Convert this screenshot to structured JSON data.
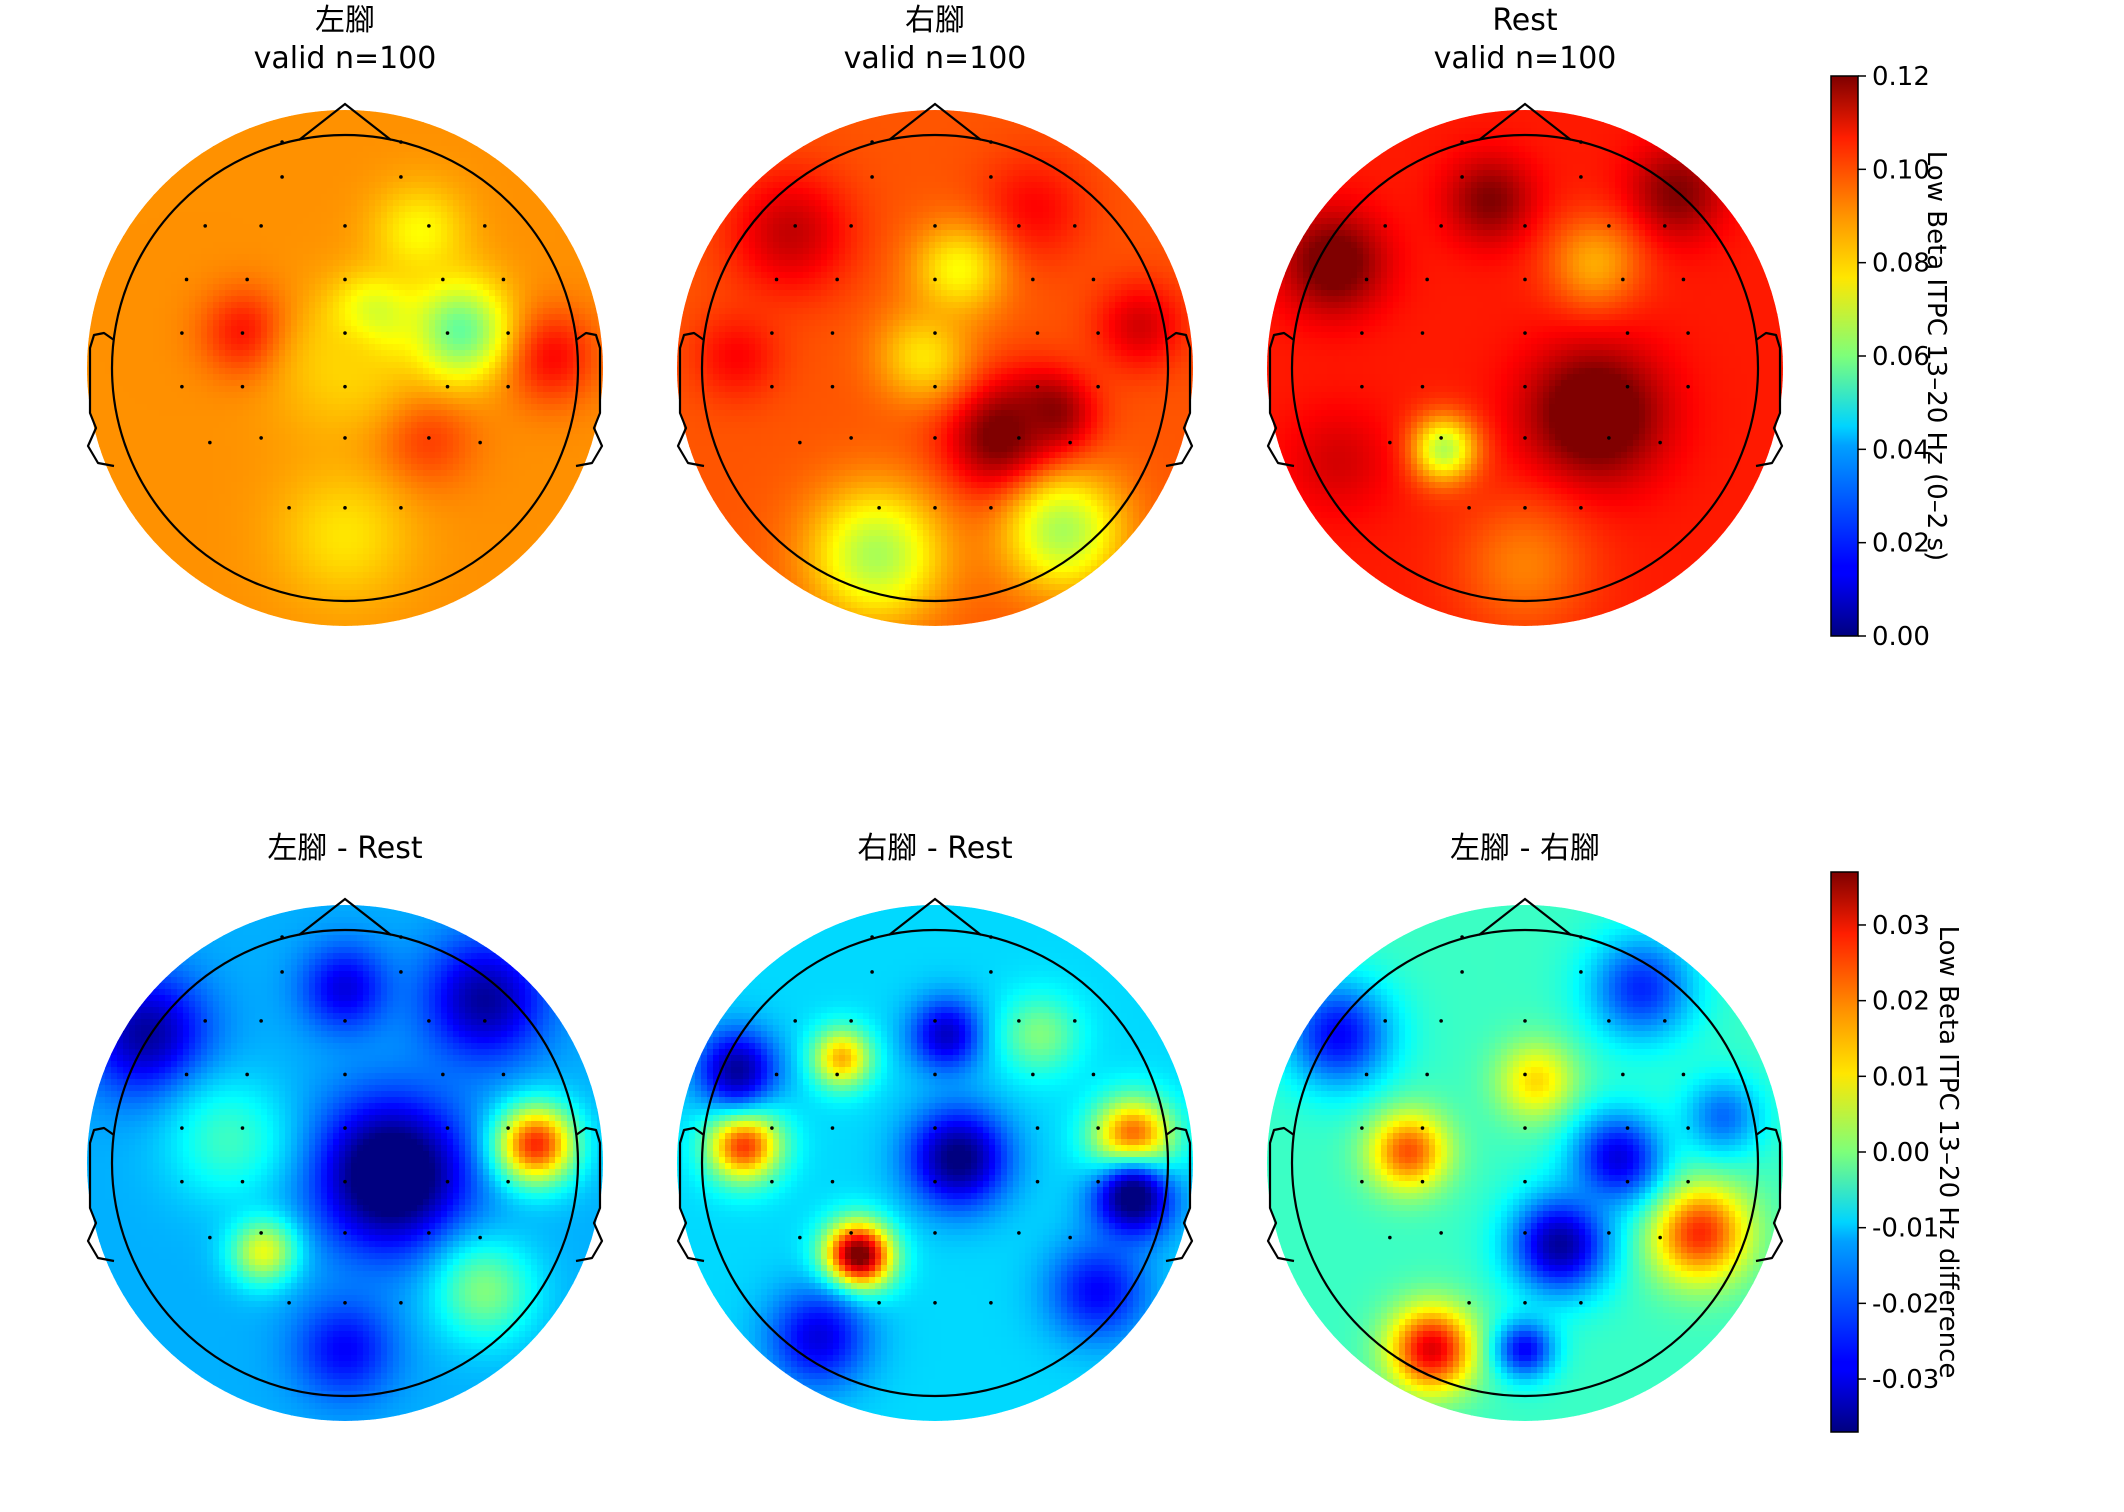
{
  "chart_data": [
    {
      "type": "heatmap",
      "subtype": "topomap",
      "title": "左腳",
      "subtitle": "valid n=100",
      "colormap": "jet",
      "scale_group": "itpc",
      "hotspots": [
        {
          "x": -0.42,
          "y": 0.15,
          "value": 0.105,
          "spread": 0.13
        },
        {
          "x": 0.88,
          "y": 0.05,
          "value": 0.105,
          "spread": 0.14
        },
        {
          "x": 0.33,
          "y": -0.3,
          "value": 0.1,
          "spread": 0.15
        },
        {
          "x": 0.48,
          "y": 0.16,
          "value": 0.055,
          "spread": 0.15
        },
        {
          "x": 0.12,
          "y": 0.2,
          "value": 0.06,
          "spread": 0.12
        },
        {
          "x": 0.32,
          "y": 0.58,
          "value": 0.075,
          "spread": 0.14
        },
        {
          "x": 0.0,
          "y": -0.72,
          "value": 0.078,
          "spread": 0.2
        },
        {
          "x": 0.0,
          "y": 0.0,
          "value": 0.08,
          "spread": 0.22
        }
      ],
      "background": 0.088
    },
    {
      "type": "heatmap",
      "subtype": "topomap",
      "title": "右腳",
      "subtitle": "valid n=100",
      "colormap": "jet",
      "scale_group": "itpc",
      "hotspots": [
        {
          "x": 0.3,
          "y": -0.3,
          "value": 0.125,
          "spread": 0.17
        },
        {
          "x": 0.5,
          "y": -0.2,
          "value": 0.12,
          "spread": 0.12
        },
        {
          "x": -0.62,
          "y": 0.58,
          "value": 0.112,
          "spread": 0.18
        },
        {
          "x": 0.42,
          "y": 0.68,
          "value": 0.105,
          "spread": 0.16
        },
        {
          "x": 0.88,
          "y": 0.18,
          "value": 0.11,
          "spread": 0.13
        },
        {
          "x": -0.85,
          "y": 0.05,
          "value": 0.105,
          "spread": 0.13
        },
        {
          "x": 0.1,
          "y": 0.42,
          "value": 0.075,
          "spread": 0.14
        },
        {
          "x": -0.25,
          "y": -0.8,
          "value": 0.065,
          "spread": 0.2
        },
        {
          "x": 0.55,
          "y": -0.7,
          "value": 0.065,
          "spread": 0.18
        },
        {
          "x": -0.05,
          "y": 0.05,
          "value": 0.078,
          "spread": 0.14
        }
      ],
      "background": 0.095
    },
    {
      "type": "heatmap",
      "subtype": "topomap",
      "title": "Rest",
      "subtitle": "valid n=100",
      "colormap": "jet",
      "scale_group": "itpc",
      "hotspots": [
        {
          "x": 0.3,
          "y": -0.2,
          "value": 0.13,
          "spread": 0.2
        },
        {
          "x": -0.82,
          "y": 0.45,
          "value": 0.125,
          "spread": 0.15
        },
        {
          "x": -0.15,
          "y": 0.72,
          "value": 0.12,
          "spread": 0.13
        },
        {
          "x": 0.65,
          "y": 0.75,
          "value": 0.12,
          "spread": 0.14
        },
        {
          "x": -0.35,
          "y": -0.35,
          "value": 0.065,
          "spread": 0.1
        },
        {
          "x": 0.3,
          "y": 0.45,
          "value": 0.085,
          "spread": 0.14
        },
        {
          "x": -0.8,
          "y": -0.4,
          "value": 0.11,
          "spread": 0.16
        },
        {
          "x": 0.0,
          "y": -0.85,
          "value": 0.09,
          "spread": 0.2
        }
      ],
      "background": 0.102
    },
    {
      "type": "heatmap",
      "subtype": "topomap",
      "title": "左腳 - Rest",
      "subtitle": "",
      "colormap": "jet",
      "scale_group": "diff",
      "hotspots": [
        {
          "x": 0.2,
          "y": -0.05,
          "value": -0.045,
          "spread": 0.22
        },
        {
          "x": 0.82,
          "y": 0.08,
          "value": 0.025,
          "spread": 0.12
        },
        {
          "x": -0.35,
          "y": -0.38,
          "value": 0.008,
          "spread": 0.1
        },
        {
          "x": -0.85,
          "y": 0.55,
          "value": -0.035,
          "spread": 0.18
        },
        {
          "x": 0.6,
          "y": 0.7,
          "value": -0.035,
          "spread": 0.18
        },
        {
          "x": 0.0,
          "y": 0.75,
          "value": -0.03,
          "spread": 0.13
        },
        {
          "x": 0.0,
          "y": -0.8,
          "value": -0.028,
          "spread": 0.15
        },
        {
          "x": 0.6,
          "y": -0.55,
          "value": 0.0,
          "spread": 0.15
        },
        {
          "x": -0.5,
          "y": 0.1,
          "value": -0.005,
          "spread": 0.18
        }
      ],
      "background": -0.015
    },
    {
      "type": "heatmap",
      "subtype": "topomap",
      "title": "右腳 - Rest",
      "subtitle": "",
      "colormap": "jet",
      "scale_group": "diff",
      "hotspots": [
        {
          "x": -0.33,
          "y": -0.4,
          "value": 0.042,
          "spread": 0.1
        },
        {
          "x": 0.85,
          "y": 0.1,
          "value": 0.025,
          "spread": 0.12
        },
        {
          "x": -0.82,
          "y": 0.08,
          "value": 0.025,
          "spread": 0.11
        },
        {
          "x": -0.4,
          "y": 0.45,
          "value": 0.015,
          "spread": 0.09
        },
        {
          "x": 0.1,
          "y": 0.02,
          "value": -0.038,
          "spread": 0.15
        },
        {
          "x": 0.85,
          "y": -0.15,
          "value": -0.04,
          "spread": 0.12
        },
        {
          "x": -0.85,
          "y": 0.4,
          "value": -0.035,
          "spread": 0.12
        },
        {
          "x": 0.05,
          "y": 0.55,
          "value": -0.032,
          "spread": 0.11
        },
        {
          "x": -0.5,
          "y": -0.75,
          "value": -0.03,
          "spread": 0.15
        },
        {
          "x": 0.7,
          "y": -0.55,
          "value": -0.028,
          "spread": 0.15
        },
        {
          "x": 0.45,
          "y": 0.55,
          "value": 0.0,
          "spread": 0.12
        }
      ],
      "background": -0.012
    },
    {
      "type": "heatmap",
      "subtype": "topomap",
      "title": "左腳 - 右腳",
      "subtitle": "",
      "colormap": "jet",
      "scale_group": "diff",
      "hotspots": [
        {
          "x": -0.5,
          "y": 0.05,
          "value": 0.022,
          "spread": 0.12
        },
        {
          "x": -0.4,
          "y": -0.8,
          "value": 0.03,
          "spread": 0.13
        },
        {
          "x": 0.75,
          "y": -0.3,
          "value": 0.025,
          "spread": 0.15
        },
        {
          "x": 0.05,
          "y": 0.35,
          "value": 0.012,
          "spread": 0.12
        },
        {
          "x": 0.15,
          "y": -0.35,
          "value": -0.035,
          "spread": 0.15
        },
        {
          "x": 0.4,
          "y": 0.02,
          "value": -0.03,
          "spread": 0.14
        },
        {
          "x": -0.8,
          "y": 0.55,
          "value": -0.028,
          "spread": 0.16
        },
        {
          "x": 0.5,
          "y": 0.75,
          "value": -0.025,
          "spread": 0.16
        },
        {
          "x": 0.0,
          "y": -0.8,
          "value": -0.028,
          "spread": 0.09
        },
        {
          "x": 0.85,
          "y": 0.2,
          "value": -0.02,
          "spread": 0.12
        }
      ],
      "background": -0.005
    }
  ],
  "sensors": [
    [
      -0.27,
      0.97
    ],
    [
      0.24,
      0.97
    ],
    [
      -0.27,
      0.82
    ],
    [
      0.24,
      0.82
    ],
    [
      -0.6,
      0.61
    ],
    [
      -0.36,
      0.61
    ],
    [
      0.0,
      0.61
    ],
    [
      0.36,
      0.61
    ],
    [
      0.6,
      0.61
    ],
    [
      -0.68,
      0.38
    ],
    [
      -0.42,
      0.38
    ],
    [
      0.0,
      0.38
    ],
    [
      0.42,
      0.38
    ],
    [
      0.68,
      0.38
    ],
    [
      -0.7,
      0.15
    ],
    [
      -0.44,
      0.15
    ],
    [
      0.0,
      0.15
    ],
    [
      0.44,
      0.15
    ],
    [
      0.7,
      0.15
    ],
    [
      -0.7,
      -0.08
    ],
    [
      -0.44,
      -0.08
    ],
    [
      0.0,
      -0.08
    ],
    [
      0.44,
      -0.08
    ],
    [
      0.7,
      -0.08
    ],
    [
      -0.58,
      -0.32
    ],
    [
      -0.36,
      -0.3
    ],
    [
      0.0,
      -0.3
    ],
    [
      0.36,
      -0.3
    ],
    [
      0.58,
      -0.32
    ],
    [
      -0.24,
      -0.6
    ],
    [
      0.0,
      -0.6
    ],
    [
      0.24,
      -0.6
    ]
  ],
  "colorbars": [
    {
      "scale_group": "itpc",
      "label": "Low Beta ITPC 13–20 Hz (0–2 s)",
      "vmin": 0.0,
      "vmax": 0.12,
      "ticks": [
        {
          "value": 0.0,
          "label": "0.00"
        },
        {
          "value": 0.02,
          "label": "0.02"
        },
        {
          "value": 0.04,
          "label": "0.04"
        },
        {
          "value": 0.06,
          "label": "0.06"
        },
        {
          "value": 0.08,
          "label": "0.08"
        },
        {
          "value": 0.1,
          "label": "0.10"
        },
        {
          "value": 0.12,
          "label": "0.12"
        }
      ]
    },
    {
      "scale_group": "diff",
      "label": "Low Beta ITPC 13–20 Hz difference",
      "vmin": -0.037,
      "vmax": 0.037,
      "ticks": [
        {
          "value": -0.03,
          "label": "-0.03"
        },
        {
          "value": -0.02,
          "label": "-0.02"
        },
        {
          "value": -0.01,
          "label": "-0.01"
        },
        {
          "value": 0.0,
          "label": "0.00"
        },
        {
          "value": 0.01,
          "label": "0.01"
        },
        {
          "value": 0.02,
          "label": "0.02"
        },
        {
          "value": 0.03,
          "label": "0.03"
        }
      ]
    }
  ]
}
